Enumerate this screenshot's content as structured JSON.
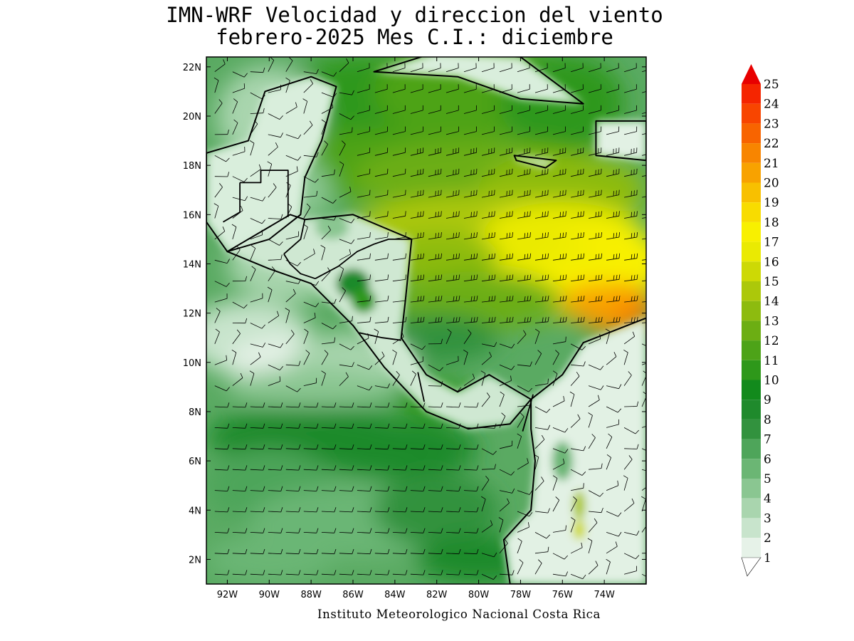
{
  "title_line1": "IMN-WRF Velocidad y direccion del viento",
  "title_line2": "febrero-2025 Mes C.I.: diciembre",
  "credit": "Instituto Meteorologico Nacional Costa Rica",
  "map": {
    "lon_range": [
      -93.0,
      -72.0
    ],
    "lat_range": [
      1.0,
      22.4
    ],
    "lon_ticks": [
      {
        "lon": -92,
        "label": "92W"
      },
      {
        "lon": -90,
        "label": "90W"
      },
      {
        "lon": -88,
        "label": "88W"
      },
      {
        "lon": -86,
        "label": "86W"
      },
      {
        "lon": -84,
        "label": "84W"
      },
      {
        "lon": -82,
        "label": "82W"
      },
      {
        "lon": -80,
        "label": "80W"
      },
      {
        "lon": -78,
        "label": "78W"
      },
      {
        "lon": -76,
        "label": "76W"
      },
      {
        "lon": -74,
        "label": "74W"
      }
    ],
    "lat_ticks": [
      {
        "lat": 22,
        "label": "22N"
      },
      {
        "lat": 20,
        "label": "20N"
      },
      {
        "lat": 18,
        "label": "18N"
      },
      {
        "lat": 16,
        "label": "16N"
      },
      {
        "lat": 14,
        "label": "14N"
      },
      {
        "lat": 12,
        "label": "12N"
      },
      {
        "lat": 10,
        "label": "10N"
      },
      {
        "lat": 8,
        "label": "8N"
      },
      {
        "lat": 6,
        "label": "6N"
      },
      {
        "lat": 4,
        "label": "4N"
      },
      {
        "lat": 2,
        "label": "2N"
      }
    ],
    "wind_field_note": "color shading = wind speed; barbs = wind direction; dominant easterly trade winds, max near 74W 12N"
  },
  "colorbar": {
    "levels": [
      "1",
      "2",
      "3",
      "4",
      "5",
      "6",
      "7",
      "8",
      "9",
      "10",
      "11",
      "12",
      "13",
      "14",
      "15",
      "16",
      "17",
      "18",
      "19",
      "20",
      "21",
      "22",
      "23",
      "24",
      "25"
    ],
    "colors": [
      "#ffffff",
      "#e6f2e8",
      "#c8e4cc",
      "#a9d5ae",
      "#8ac691",
      "#6bb674",
      "#4ea55a",
      "#32923e",
      "#1f8a2c",
      "#128a1c",
      "#2e981a",
      "#4da318",
      "#6cae13",
      "#8dbb0f",
      "#acc80a",
      "#cdd905",
      "#eaea02",
      "#f8f000",
      "#f8dc00",
      "#f8c000",
      "#f8a200",
      "#f88500",
      "#f86400",
      "#f84500",
      "#f52500",
      "#e80000"
    ]
  }
}
